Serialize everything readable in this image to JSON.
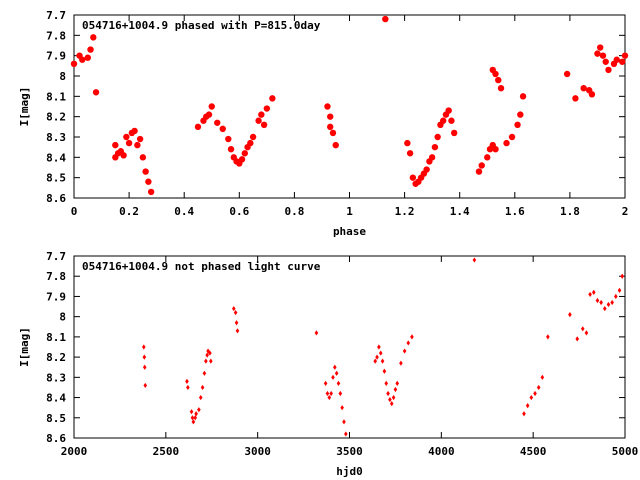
{
  "chart_data": [
    {
      "type": "scatter",
      "title": "054716+1004.9 phased with P=815.0day",
      "xlabel": "phase",
      "ylabel": "I[mag]",
      "xlim": [
        0,
        2
      ],
      "ylim": [
        8.6,
        7.7
      ],
      "y_inverted": true,
      "grid": false,
      "marker": "filled-circle",
      "color": "#ff0000",
      "xticks": [
        "0",
        "0.2",
        "0.4",
        "0.6",
        "0.8",
        "1",
        "1.2",
        "1.4",
        "1.6",
        "1.8",
        "2"
      ],
      "yticks": [
        "7.7",
        "7.8",
        "7.9",
        "8",
        "8.1",
        "8.2",
        "8.3",
        "8.4",
        "8.5",
        "8.6"
      ],
      "points": [
        [
          0.0,
          7.94
        ],
        [
          0.02,
          7.9
        ],
        [
          0.03,
          7.92
        ],
        [
          0.05,
          7.91
        ],
        [
          0.06,
          7.87
        ],
        [
          0.07,
          7.81
        ],
        [
          0.08,
          8.08
        ],
        [
          0.15,
          8.34
        ],
        [
          0.15,
          8.4
        ],
        [
          0.16,
          8.38
        ],
        [
          0.17,
          8.37
        ],
        [
          0.18,
          8.39
        ],
        [
          0.19,
          8.3
        ],
        [
          0.2,
          8.33
        ],
        [
          0.21,
          8.28
        ],
        [
          0.22,
          8.27
        ],
        [
          0.23,
          8.34
        ],
        [
          0.24,
          8.31
        ],
        [
          0.25,
          8.4
        ],
        [
          0.26,
          8.47
        ],
        [
          0.27,
          8.52
        ],
        [
          0.28,
          8.57
        ],
        [
          0.45,
          8.25
        ],
        [
          0.47,
          8.22
        ],
        [
          0.48,
          8.2
        ],
        [
          0.49,
          8.19
        ],
        [
          0.5,
          8.15
        ],
        [
          0.52,
          8.23
        ],
        [
          0.54,
          8.26
        ],
        [
          0.56,
          8.31
        ],
        [
          0.57,
          8.36
        ],
        [
          0.58,
          8.4
        ],
        [
          0.59,
          8.42
        ],
        [
          0.6,
          8.43
        ],
        [
          0.61,
          8.41
        ],
        [
          0.62,
          8.38
        ],
        [
          0.63,
          8.35
        ],
        [
          0.64,
          8.33
        ],
        [
          0.65,
          8.3
        ],
        [
          0.67,
          8.22
        ],
        [
          0.68,
          8.19
        ],
        [
          0.69,
          8.24
        ],
        [
          0.7,
          8.16
        ],
        [
          0.72,
          8.11
        ],
        [
          0.92,
          8.15
        ],
        [
          0.93,
          8.2
        ],
        [
          0.93,
          8.25
        ],
        [
          0.94,
          8.28
        ],
        [
          0.95,
          8.34
        ],
        [
          1.13,
          7.72
        ],
        [
          1.21,
          8.33
        ],
        [
          1.22,
          8.38
        ],
        [
          1.23,
          8.5
        ],
        [
          1.24,
          8.53
        ],
        [
          1.25,
          8.52
        ],
        [
          1.26,
          8.5
        ],
        [
          1.27,
          8.48
        ],
        [
          1.28,
          8.46
        ],
        [
          1.29,
          8.42
        ],
        [
          1.3,
          8.4
        ],
        [
          1.31,
          8.35
        ],
        [
          1.32,
          8.3
        ],
        [
          1.33,
          8.24
        ],
        [
          1.34,
          8.22
        ],
        [
          1.35,
          8.19
        ],
        [
          1.36,
          8.17
        ],
        [
          1.37,
          8.22
        ],
        [
          1.38,
          8.28
        ],
        [
          1.47,
          8.47
        ],
        [
          1.48,
          8.44
        ],
        [
          1.5,
          8.4
        ],
        [
          1.51,
          8.36
        ],
        [
          1.52,
          8.34
        ],
        [
          1.53,
          8.36
        ],
        [
          1.52,
          7.97
        ],
        [
          1.53,
          7.99
        ],
        [
          1.54,
          8.02
        ],
        [
          1.55,
          8.06
        ],
        [
          1.57,
          8.33
        ],
        [
          1.59,
          8.3
        ],
        [
          1.61,
          8.24
        ],
        [
          1.62,
          8.19
        ],
        [
          1.63,
          8.1
        ],
        [
          1.79,
          7.99
        ],
        [
          1.82,
          8.11
        ],
        [
          1.85,
          8.06
        ],
        [
          1.87,
          8.07
        ],
        [
          1.88,
          8.09
        ],
        [
          1.9,
          7.89
        ],
        [
          1.91,
          7.86
        ],
        [
          1.92,
          7.9
        ],
        [
          1.93,
          7.93
        ],
        [
          1.94,
          7.97
        ],
        [
          1.96,
          7.94
        ],
        [
          1.97,
          7.92
        ],
        [
          1.99,
          7.93
        ],
        [
          2.0,
          7.9
        ]
      ]
    },
    {
      "type": "scatter",
      "title": "054716+1004.9 not phased light curve",
      "xlabel": "hjd0",
      "ylabel": "I[mag]",
      "xlim": [
        2000,
        5000
      ],
      "ylim": [
        8.6,
        7.7
      ],
      "y_inverted": true,
      "grid": false,
      "marker": "small-diamond",
      "color": "#ff0000",
      "xticks": [
        "2000",
        "2500",
        "3000",
        "3500",
        "4000",
        "4500",
        "5000"
      ],
      "yticks": [
        "7.7",
        "7.8",
        "7.9",
        "8",
        "8.1",
        "8.2",
        "8.3",
        "8.4",
        "8.5",
        "8.6"
      ],
      "points": [
        [
          2380,
          8.15
        ],
        [
          2383,
          8.2
        ],
        [
          2385,
          8.25
        ],
        [
          2388,
          8.34
        ],
        [
          2615,
          8.32
        ],
        [
          2620,
          8.35
        ],
        [
          2640,
          8.47
        ],
        [
          2645,
          8.5
        ],
        [
          2650,
          8.52
        ],
        [
          2660,
          8.5
        ],
        [
          2665,
          8.48
        ],
        [
          2680,
          8.46
        ],
        [
          2690,
          8.4
        ],
        [
          2700,
          8.35
        ],
        [
          2710,
          8.28
        ],
        [
          2718,
          8.22
        ],
        [
          2725,
          8.19
        ],
        [
          2730,
          8.17
        ],
        [
          2740,
          8.18
        ],
        [
          2745,
          8.22
        ],
        [
          2870,
          7.96
        ],
        [
          2880,
          7.98
        ],
        [
          2885,
          8.03
        ],
        [
          2890,
          8.07
        ],
        [
          3320,
          8.08
        ],
        [
          3370,
          8.33
        ],
        [
          3380,
          8.38
        ],
        [
          3390,
          8.4
        ],
        [
          3400,
          8.38
        ],
        [
          3410,
          8.3
        ],
        [
          3420,
          8.25
        ],
        [
          3430,
          8.28
        ],
        [
          3440,
          8.33
        ],
        [
          3450,
          8.38
        ],
        [
          3460,
          8.45
        ],
        [
          3470,
          8.52
        ],
        [
          3480,
          8.58
        ],
        [
          3640,
          8.22
        ],
        [
          3650,
          8.2
        ],
        [
          3660,
          8.15
        ],
        [
          3670,
          8.18
        ],
        [
          3680,
          8.22
        ],
        [
          3690,
          8.27
        ],
        [
          3700,
          8.33
        ],
        [
          3710,
          8.38
        ],
        [
          3720,
          8.41
        ],
        [
          3730,
          8.43
        ],
        [
          3740,
          8.4
        ],
        [
          3750,
          8.36
        ],
        [
          3760,
          8.33
        ],
        [
          3780,
          8.23
        ],
        [
          3800,
          8.17
        ],
        [
          3820,
          8.13
        ],
        [
          3840,
          8.1
        ],
        [
          4180,
          7.72
        ],
        [
          4450,
          8.48
        ],
        [
          4470,
          8.44
        ],
        [
          4490,
          8.4
        ],
        [
          4510,
          8.38
        ],
        [
          4530,
          8.35
        ],
        [
          4550,
          8.3
        ],
        [
          4580,
          8.1
        ],
        [
          4700,
          7.99
        ],
        [
          4740,
          8.11
        ],
        [
          4770,
          8.06
        ],
        [
          4790,
          8.08
        ],
        [
          4810,
          7.89
        ],
        [
          4830,
          7.88
        ],
        [
          4850,
          7.92
        ],
        [
          4870,
          7.93
        ],
        [
          4890,
          7.96
        ],
        [
          4910,
          7.94
        ],
        [
          4930,
          7.93
        ],
        [
          4950,
          7.9
        ],
        [
          4970,
          7.87
        ],
        [
          4985,
          7.8
        ]
      ]
    }
  ]
}
